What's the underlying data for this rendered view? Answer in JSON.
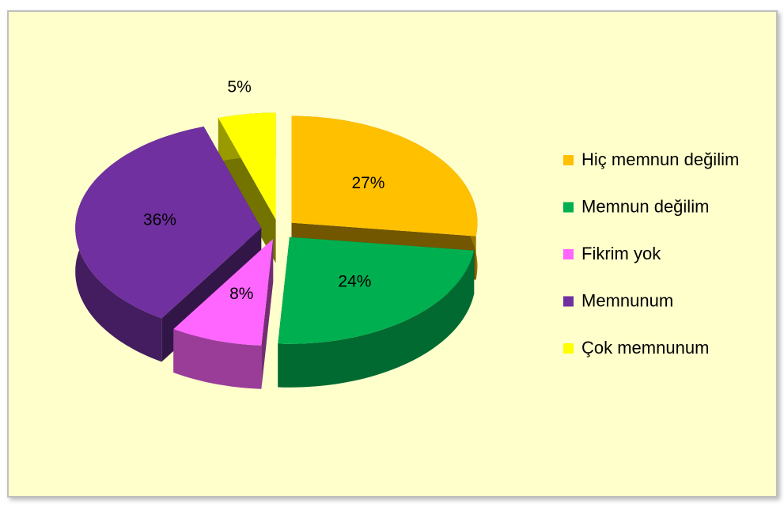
{
  "chart_data": {
    "type": "pie3d",
    "categories": [
      "Hiç memnun değilim",
      "Memnun değilim",
      "Fikrim yok",
      "Memnunum",
      "Çok memnunum"
    ],
    "values": [
      27,
      24,
      8,
      36,
      5
    ],
    "value_labels": [
      "27%",
      "24%",
      "8%",
      "36%",
      "5%"
    ],
    "colors": [
      "#ffc000",
      "#00b050",
      "#ff66ff",
      "#7030a0",
      "#ffff00"
    ],
    "legend": "right"
  }
}
